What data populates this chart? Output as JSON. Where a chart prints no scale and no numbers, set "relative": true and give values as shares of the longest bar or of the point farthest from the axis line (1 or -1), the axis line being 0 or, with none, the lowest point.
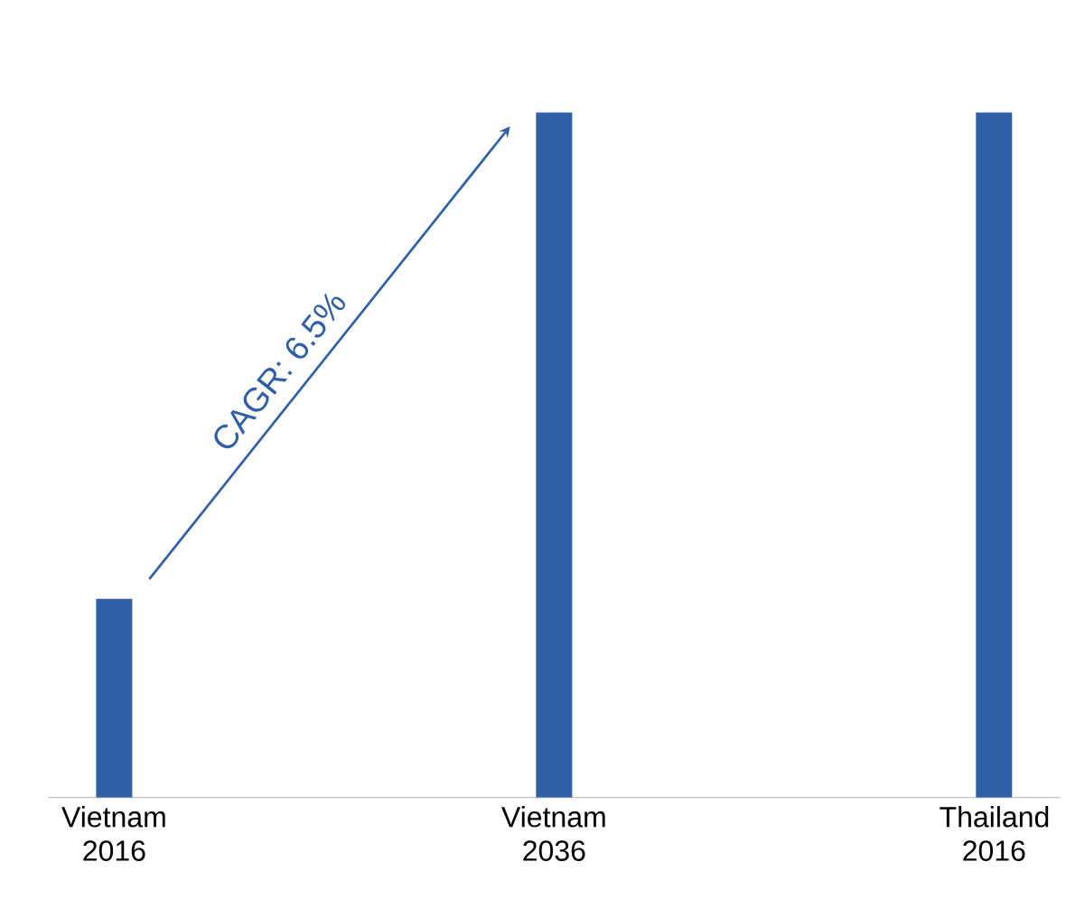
{
  "chart_data": {
    "type": "bar",
    "relative": true,
    "categories": [
      "Vietnam 2016",
      "Vietnam 2036",
      "Thailand 2016"
    ],
    "values": [
      0.29,
      1,
      1
    ],
    "color": "#2f5fa7",
    "annotations": [
      "CAGR: 6.5%"
    ]
  }
}
